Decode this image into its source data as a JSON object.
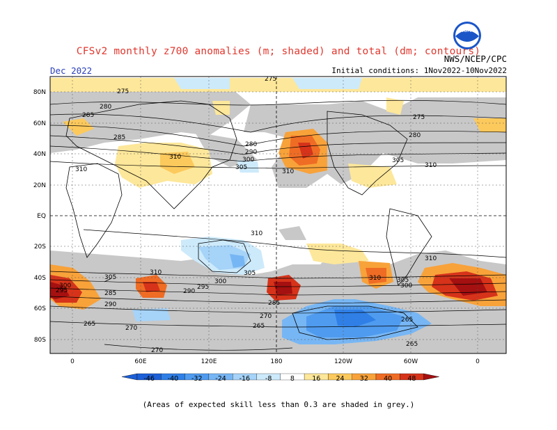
{
  "title": "CFSv2 monthly z700 anomalies (m; shaded) and total (dm; contours)",
  "date": "Dec 2022",
  "agency": "NWS/NCEP/CPC",
  "initial_conditions": "Initial conditions: 1Nov2022-10Nov2022",
  "logo_text": "NOAA",
  "footnote": "(Areas of expected skill less than 0.3 are shaded in grey.)",
  "lat_labels": [
    "80N",
    "60N",
    "40N",
    "20N",
    "EQ",
    "20S",
    "40S",
    "60S",
    "80S"
  ],
  "lon_labels": [
    "0",
    "60E",
    "120E",
    "180",
    "120W",
    "60W",
    "0"
  ],
  "colorbar": {
    "ticks": [
      "-46",
      "-40",
      "-32",
      "-24",
      "-16",
      "-8",
      "8",
      "16",
      "24",
      "32",
      "40",
      "48"
    ],
    "colors": [
      "#1c5fd6",
      "#2f7fe6",
      "#4f9bef",
      "#77b6f4",
      "#a6d3f8",
      "#cdeafb",
      "#ffffff",
      "#fde79a",
      "#fcc95c",
      "#f8a23a",
      "#ef6c25",
      "#d6331a",
      "#a51010"
    ]
  },
  "contour_labels": [
    "275",
    "280",
    "285",
    "290",
    "295",
    "300",
    "305",
    "310"
  ]
}
